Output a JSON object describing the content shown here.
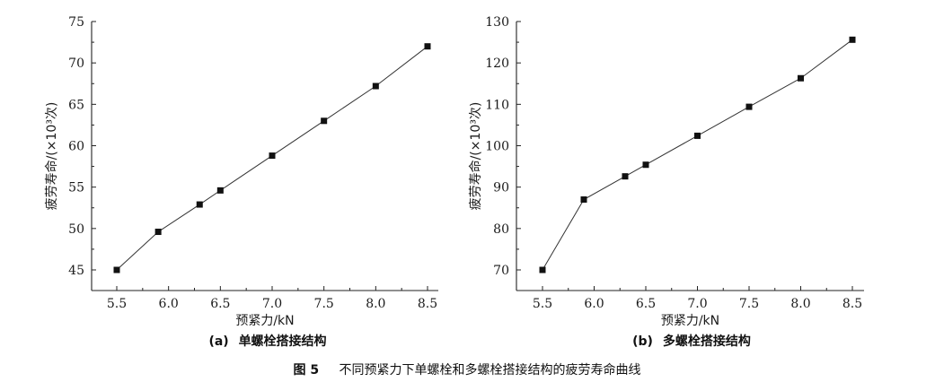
{
  "chart_data": [
    {
      "type": "line",
      "panel": "(a)",
      "caption": "单螺栓搭接结构",
      "xlabel": "预紧力/kN",
      "ylabel": "疲劳寿命/(×10³次)",
      "xlim": [
        5.5,
        8.5
      ],
      "ylim": [
        45,
        75
      ],
      "xticks": [
        "5.5",
        "6.0",
        "6.5",
        "7.0",
        "7.5",
        "8.0",
        "8.5"
      ],
      "yticks": [
        "45",
        "50",
        "55",
        "60",
        "65",
        "70",
        "75"
      ],
      "grid": false,
      "series": [
        {
          "x": [
            5.5,
            5.9,
            6.3,
            6.5,
            7.0,
            7.5,
            8.0,
            8.5
          ],
          "values": [
            45.0,
            49.6,
            52.9,
            54.6,
            58.8,
            63.0,
            67.2,
            72.0
          ]
        }
      ]
    },
    {
      "type": "line",
      "panel": "(b)",
      "caption": "多螺栓搭接结构",
      "xlabel": "预紧力/kN",
      "ylabel": "疲劳寿命/(×10³次)",
      "xlim": [
        5.5,
        8.5
      ],
      "ylim": [
        70,
        130
      ],
      "xticks": [
        "5.5",
        "6.0",
        "6.5",
        "7.0",
        "7.5",
        "8.0",
        "8.5"
      ],
      "yticks": [
        "70",
        "80",
        "90",
        "100",
        "110",
        "120",
        "130"
      ],
      "grid": false,
      "series": [
        {
          "x": [
            5.5,
            5.9,
            6.3,
            6.5,
            7.0,
            7.5,
            8.0,
            8.5
          ],
          "values": [
            70.0,
            87.0,
            92.6,
            95.4,
            102.4,
            109.4,
            116.3,
            125.6
          ]
        }
      ]
    }
  ],
  "figure_caption": {
    "number": "图 5",
    "text": "不同预紧力下单螺栓和多螺栓搭接结构的疲劳寿命曲线"
  }
}
